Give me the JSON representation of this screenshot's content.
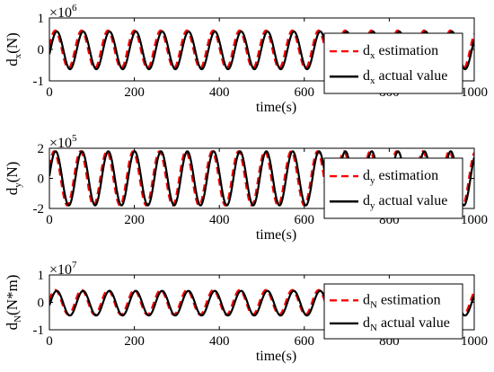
{
  "figure": {
    "colors": {
      "estimation": "#ff0000",
      "actual": "#000000",
      "axes": "#000000",
      "background": "#ffffff"
    }
  },
  "chart_data": [
    {
      "type": "line",
      "xlabel": "time(s)",
      "ylabel": {
        "main": "d",
        "sub": "x",
        "unit": "(N)"
      },
      "y_multiplier": {
        "base": "×10",
        "exponent": "6"
      },
      "xlim": [
        0,
        1000
      ],
      "ylim": [
        -1,
        1
      ],
      "x_ticks": [
        "0",
        "200",
        "400",
        "600",
        "800",
        "1000"
      ],
      "y_ticks": [
        "1",
        "0",
        "-1"
      ],
      "legend_position": "right",
      "series": [
        {
          "name": {
            "main": "d",
            "sub": "x",
            "text": "estimation"
          },
          "style": "dashed",
          "color": "#ff0000",
          "waveform": {
            "amplitude": 0.6,
            "period": 62,
            "phase_deg": 10,
            "offset": 0
          }
        },
        {
          "name": {
            "main": "d",
            "sub": "x",
            "text": "actual value"
          },
          "style": "solid",
          "color": "#000000",
          "waveform": {
            "amplitude": 0.6,
            "period": 62,
            "phase_deg": -12,
            "offset": -0.03
          }
        }
      ]
    },
    {
      "type": "line",
      "xlabel": "time(s)",
      "ylabel": {
        "main": "d",
        "sub": "y",
        "unit": "(N)"
      },
      "y_multiplier": {
        "base": "×10",
        "exponent": "5"
      },
      "xlim": [
        0,
        1000
      ],
      "ylim": [
        -2,
        2
      ],
      "x_ticks": [
        "0",
        "200",
        "400",
        "600",
        "800",
        "1000"
      ],
      "y_ticks": [
        "2",
        "0",
        "-2"
      ],
      "legend_position": "right",
      "series": [
        {
          "name": {
            "main": "d",
            "sub": "y",
            "text": "estimation"
          },
          "style": "dashed",
          "color": "#ff0000",
          "waveform": {
            "amplitude": 1.8,
            "period": 62,
            "phase_deg": 25,
            "offset": 0
          }
        },
        {
          "name": {
            "main": "d",
            "sub": "y",
            "text": "actual value"
          },
          "style": "solid",
          "color": "#000000",
          "waveform": {
            "amplitude": 1.8,
            "period": 62,
            "phase_deg": 5,
            "offset": 0
          }
        }
      ]
    },
    {
      "type": "line",
      "xlabel": "time(s)",
      "ylabel": {
        "main": "d",
        "sub": "N",
        "unit": "(N*m)"
      },
      "y_multiplier": {
        "base": "×10",
        "exponent": "7"
      },
      "xlim": [
        0,
        1000
      ],
      "ylim": [
        -1,
        1
      ],
      "x_ticks": [
        "0",
        "200",
        "400",
        "600",
        "800",
        "1000"
      ],
      "y_ticks": [
        "1",
        "0",
        "-1"
      ],
      "legend_position": "right",
      "series": [
        {
          "name": {
            "main": "d",
            "sub": "N",
            "text": "estimation"
          },
          "style": "dashed",
          "color": "#ff0000",
          "waveform": {
            "amplitude": 0.45,
            "period": 62,
            "phase_deg": 10,
            "offset": 0
          }
        },
        {
          "name": {
            "main": "d",
            "sub": "N",
            "text": "actual value"
          },
          "style": "solid",
          "color": "#000000",
          "waveform": {
            "amplitude": 0.45,
            "period": 62,
            "phase_deg": -10,
            "offset": -0.03
          }
        }
      ]
    }
  ]
}
